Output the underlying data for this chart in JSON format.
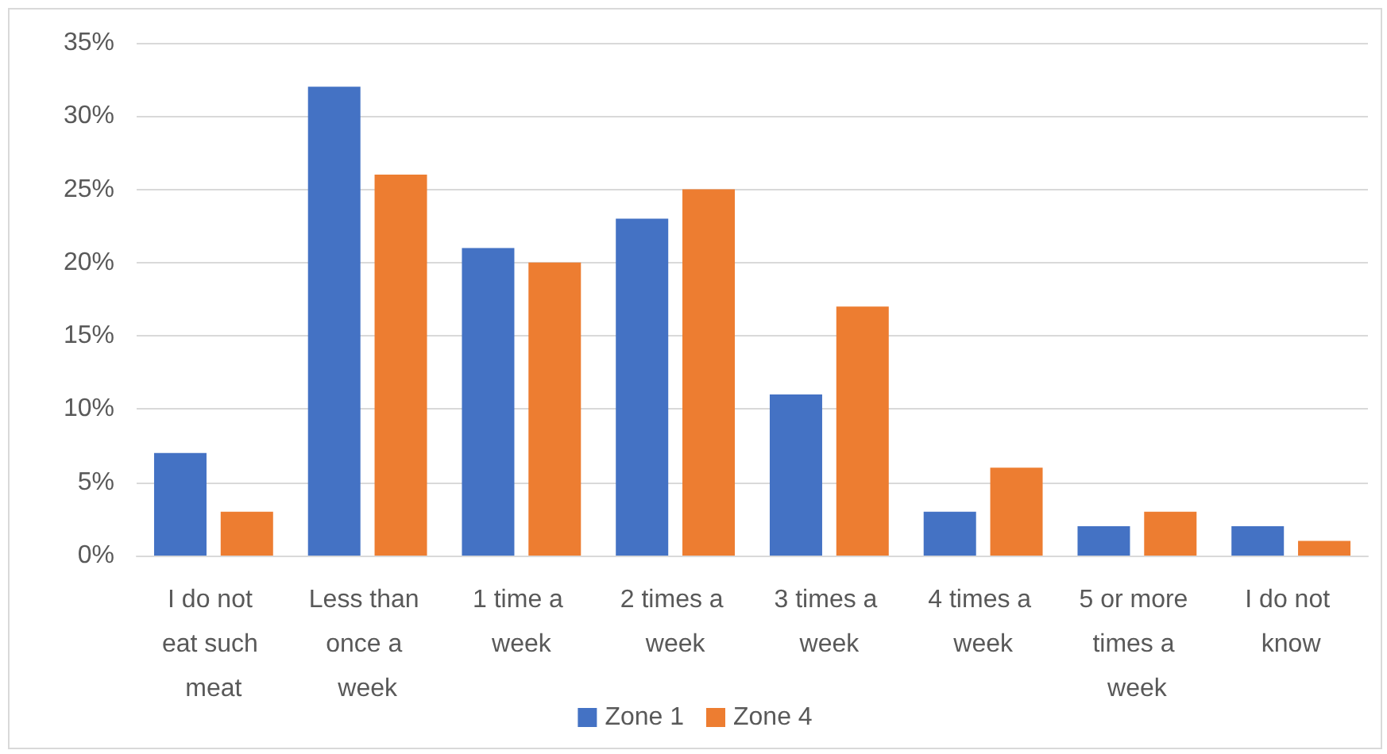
{
  "chart_data": {
    "type": "bar",
    "categories": [
      "I do not eat such meat",
      "Less than once a week",
      "1 time a week",
      "2 times a week",
      "3 times a week",
      "4 times a week",
      "5 or more times a week",
      "I do not know"
    ],
    "series": [
      {
        "name": "Zone 1",
        "color": "#4472c4",
        "values": [
          7,
          32,
          21,
          23,
          11,
          3,
          2,
          2
        ]
      },
      {
        "name": "Zone 4",
        "color": "#ed7d31",
        "values": [
          3,
          26,
          20,
          25,
          17,
          6,
          3,
          1
        ]
      }
    ],
    "ylim": [
      0,
      35
    ],
    "yticks": [
      {
        "value": 0,
        "label": "0%"
      },
      {
        "value": 5,
        "label": "5%"
      },
      {
        "value": 10,
        "label": "10%"
      },
      {
        "value": 15,
        "label": "15%"
      },
      {
        "value": 20,
        "label": "20%"
      },
      {
        "value": 25,
        "label": "25%"
      },
      {
        "value": 30,
        "label": "30%"
      },
      {
        "value": 35,
        "label": "35%"
      }
    ],
    "grid": "y",
    "legend": "bottom"
  }
}
